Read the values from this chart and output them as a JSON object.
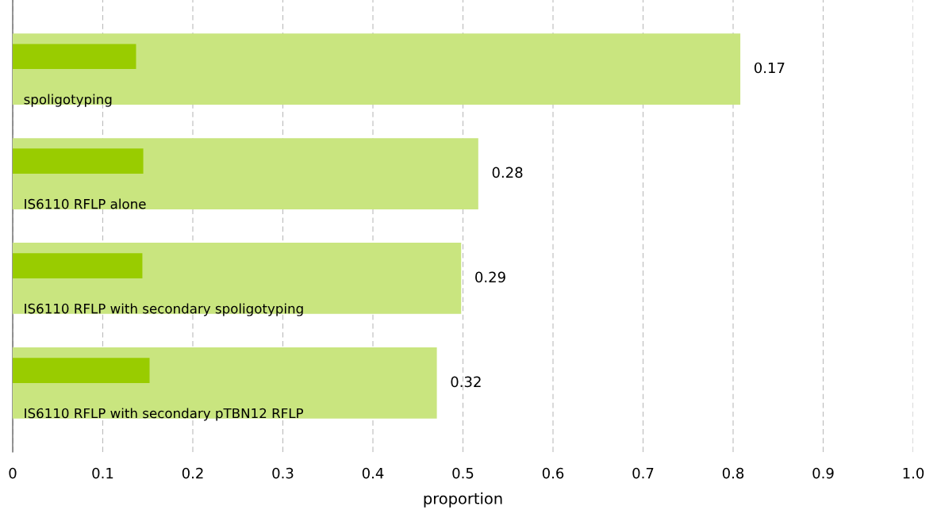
{
  "chart_data": {
    "type": "bar",
    "orientation": "horizontal",
    "xlabel": "proportion",
    "categories": [
      "spoligotyping",
      "IS6110 RFLP alone",
      "IS6110 RFLP with secondary spoligotyping",
      "IS6110 RFLP with secondary pTBN12 RFLP"
    ],
    "series": [
      {
        "color": "#c9e57f",
        "values": [
          0.808,
          0.517,
          0.498,
          0.471
        ]
      },
      {
        "color": "#99cc00",
        "values": [
          0.137,
          0.145,
          0.144,
          0.152
        ]
      }
    ],
    "xlim": [
      0,
      1.0
    ],
    "xticks": [
      0,
      0.1,
      0.2,
      0.3,
      0.4,
      0.5,
      0.6,
      0.7,
      0.8,
      0.9,
      {
        "value": 1.0,
        "label": "1.0"
      }
    ],
    "annotations": [
      {
        "text": "0.17",
        "x": 0.808,
        "y": "spoligotyping"
      },
      {
        "text": "0.28",
        "x": 0.517,
        "y": "IS6110 RFLP alone"
      },
      {
        "text": "0.29",
        "x": 0.498,
        "y": "IS6110 RFLP with secondary spoligotyping"
      },
      {
        "text": "0.32",
        "x": 0.471,
        "y": "IS6110 RFLP with secondary pTBN12 RFLP"
      }
    ],
    "grid": "x",
    "tick_labels": "x",
    "legend": false
  }
}
